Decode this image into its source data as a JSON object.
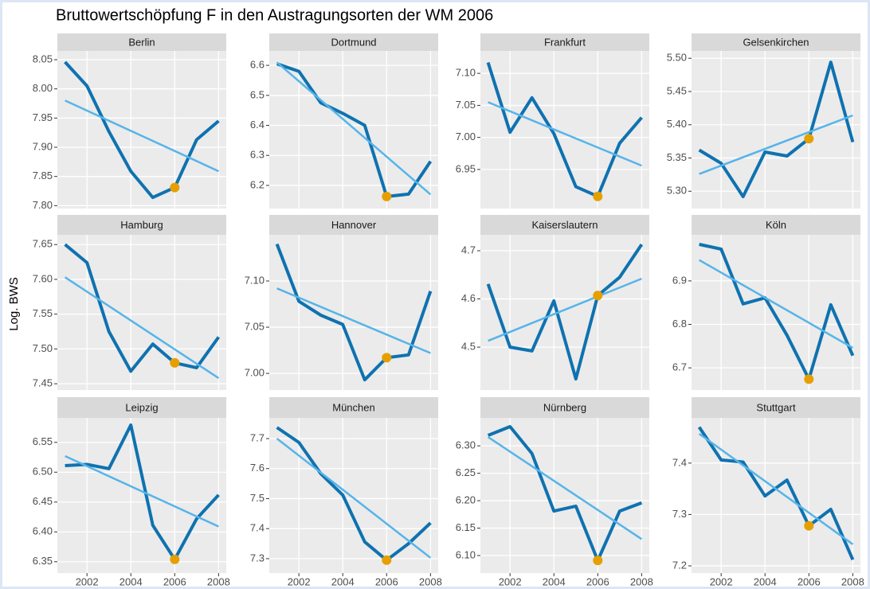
{
  "chart_data": {
    "type": "line",
    "title": "Bruttowertschöpfung F in den Austragungsorten der WM 2006",
    "y_label": "Log. BWS",
    "x": [
      2001,
      2002,
      2003,
      2004,
      2005,
      2006,
      2007,
      2008
    ],
    "xlim": [
      2000.65,
      2008.35
    ],
    "xticks": [
      2002,
      2004,
      2006,
      2008
    ],
    "highlight": 2006,
    "line_color": "#0f72b0",
    "trend_color": "#56b4e9",
    "highlight_color": "#e69f00",
    "grid": true,
    "panels": [
      {
        "name": "Berlin",
        "values": [
          8.046,
          8.005,
          7.927,
          7.859,
          7.814,
          7.831,
          7.913,
          7.945
        ],
        "trend": {
          "x": [
            2001,
            2008
          ],
          "values": [
            7.98,
            7.859
          ]
        },
        "ylim": [
          7.795,
          8.065
        ],
        "yticks": [
          {
            "value": 7.8,
            "label": "7.80"
          },
          7.85,
          {
            "value": 7.9,
            "label": "7.90"
          },
          7.95,
          {
            "value": 8.0,
            "label": "8.00"
          },
          8.05
        ]
      },
      {
        "name": "Dortmund",
        "values": [
          6.605,
          6.58,
          6.475,
          6.44,
          6.4,
          6.163,
          6.171,
          6.28
        ],
        "trend": {
          "x": [
            2001,
            2008
          ],
          "values": [
            6.61,
            6.17
          ]
        },
        "ylim": [
          6.123,
          6.648
        ],
        "yticks": [
          6.2,
          6.3,
          6.4,
          6.5,
          6.6
        ]
      },
      {
        "name": "Frankfurt",
        "values": [
          7.117,
          7.008,
          7.062,
          7.006,
          6.923,
          6.908,
          6.991,
          7.031
        ],
        "trend": {
          "x": [
            2001,
            2008
          ],
          "values": [
            7.055,
            6.956
          ]
        },
        "ylim": [
          6.889,
          7.135
        ],
        "yticks": [
          6.95,
          {
            "value": 7.0,
            "label": "7.00"
          },
          7.05,
          {
            "value": 7.1,
            "label": "7.10"
          }
        ]
      },
      {
        "name": "Gelsenkirchen",
        "values": [
          5.362,
          5.342,
          5.292,
          5.359,
          5.353,
          5.379,
          5.494,
          5.374
        ],
        "trend": {
          "x": [
            2001,
            2008
          ],
          "values": [
            5.326,
            5.414
          ]
        },
        "ylim": [
          5.274,
          5.511
        ],
        "yticks": [
          {
            "value": 5.3,
            "label": "5.30"
          },
          5.35,
          {
            "value": 5.4,
            "label": "5.40"
          },
          5.45,
          {
            "value": 5.5,
            "label": "5.50"
          }
        ]
      },
      {
        "name": "Hamburg",
        "values": [
          7.65,
          7.624,
          7.525,
          7.468,
          7.507,
          7.48,
          7.473,
          7.517
        ],
        "trend": {
          "x": [
            2001,
            2008
          ],
          "values": [
            7.603,
            7.458
          ]
        },
        "ylim": [
          7.441,
          7.664
        ],
        "yticks": [
          7.45,
          {
            "value": 7.5,
            "label": "7.50"
          },
          7.55,
          {
            "value": 7.6,
            "label": "7.60"
          },
          7.65
        ]
      },
      {
        "name": "Hannover",
        "values": [
          7.14,
          7.078,
          7.063,
          7.053,
          6.993,
          7.017,
          7.02,
          7.089
        ],
        "trend": {
          "x": [
            2001,
            2008
          ],
          "values": [
            7.092,
            7.022
          ]
        },
        "ylim": [
          6.982,
          7.15
        ],
        "yticks": [
          {
            "value": 7.0,
            "label": "7.00"
          },
          7.05,
          {
            "value": 7.1,
            "label": "7.10"
          }
        ]
      },
      {
        "name": "Kaiserslautern",
        "values": [
          4.631,
          4.5,
          4.492,
          4.596,
          4.434,
          4.607,
          4.645,
          4.713
        ],
        "trend": {
          "x": [
            2001,
            2008
          ],
          "values": [
            4.513,
            4.642
          ]
        },
        "ylim": [
          4.411,
          4.733
        ],
        "yticks": [
          4.5,
          4.6,
          4.7
        ]
      },
      {
        "name": "Köln",
        "values": [
          6.984,
          6.973,
          6.847,
          6.861,
          6.775,
          6.674,
          6.845,
          6.728
        ],
        "trend": {
          "x": [
            2001,
            2008
          ],
          "values": [
            6.948,
            6.746
          ]
        },
        "ylim": [
          6.649,
          7.006
        ],
        "yticks": [
          6.7,
          6.8,
          6.9
        ]
      },
      {
        "name": "Leipzig",
        "values": [
          6.511,
          6.513,
          6.506,
          6.579,
          6.411,
          6.354,
          6.422,
          6.462
        ],
        "trend": {
          "x": [
            2001,
            2008
          ],
          "values": [
            6.527,
            6.409
          ]
        },
        "ylim": [
          6.331,
          6.591
        ],
        "yticks": [
          6.35,
          {
            "value": 6.4,
            "label": "6.40"
          },
          6.45,
          {
            "value": 6.5,
            "label": "6.50"
          },
          6.55
        ]
      },
      {
        "name": "München",
        "values": [
          7.737,
          7.687,
          7.583,
          7.512,
          7.356,
          7.295,
          7.35,
          7.419
        ],
        "trend": {
          "x": [
            2001,
            2008
          ],
          "values": [
            7.7,
            7.303
          ]
        },
        "ylim": [
          7.252,
          7.769
        ],
        "yticks": [
          7.3,
          7.4,
          7.5,
          7.6,
          7.7
        ]
      },
      {
        "name": "Nürnberg",
        "values": [
          6.319,
          6.335,
          6.286,
          6.181,
          6.19,
          6.091,
          6.181,
          6.196
        ],
        "trend": {
          "x": [
            2001,
            2008
          ],
          "values": [
            6.316,
            6.13
          ]
        },
        "ylim": [
          6.068,
          6.351
        ],
        "yticks": [
          {
            "value": 6.1,
            "label": "6.10"
          },
          6.15,
          {
            "value": 6.2,
            "label": "6.20"
          },
          6.25,
          {
            "value": 6.3,
            "label": "6.30"
          }
        ]
      },
      {
        "name": "Stuttgart",
        "values": [
          7.47,
          7.406,
          7.402,
          7.336,
          7.367,
          7.278,
          7.31,
          7.212
        ],
        "trend": {
          "x": [
            2001,
            2008
          ],
          "values": [
            7.457,
            7.242
          ]
        },
        "ylim": [
          7.186,
          7.488
        ],
        "yticks": [
          7.2,
          7.3,
          7.4
        ]
      }
    ]
  }
}
